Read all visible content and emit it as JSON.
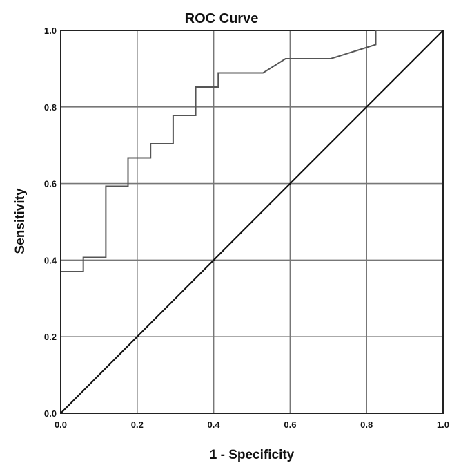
{
  "chart_data": {
    "type": "line",
    "title": "ROC Curve",
    "xlabel": "1 - Specificity",
    "ylabel": "Sensitivity",
    "xlim": [
      0,
      1
    ],
    "ylim": [
      0,
      1
    ],
    "grid": true,
    "x_ticks": [
      "0.0",
      "0.2",
      "0.4",
      "0.6",
      "0.8",
      "1.0"
    ],
    "y_ticks": [
      "0.0",
      "0.2",
      "0.4",
      "0.6",
      "0.8",
      "1.0"
    ],
    "series": [
      {
        "style": "step",
        "x": [
          0.0,
          0.059,
          0.059,
          0.118,
          0.118,
          0.176,
          0.176,
          0.235,
          0.235,
          0.294,
          0.294,
          0.353,
          0.353,
          0.412,
          0.412,
          0.529,
          0.588,
          0.706,
          0.824,
          0.824,
          1.0
        ],
        "y": [
          0.37,
          0.37,
          0.407,
          0.407,
          0.593,
          0.593,
          0.667,
          0.667,
          0.704,
          0.704,
          0.778,
          0.778,
          0.852,
          0.852,
          0.889,
          0.889,
          0.926,
          0.926,
          0.963,
          1.0,
          1.0
        ]
      },
      {
        "style": "reference",
        "x": [
          0,
          1
        ],
        "y": [
          0,
          1
        ]
      }
    ],
    "colors": {
      "curve": "#555555",
      "reference": "#111111",
      "grid": "#777777",
      "frame": "#222222"
    }
  }
}
